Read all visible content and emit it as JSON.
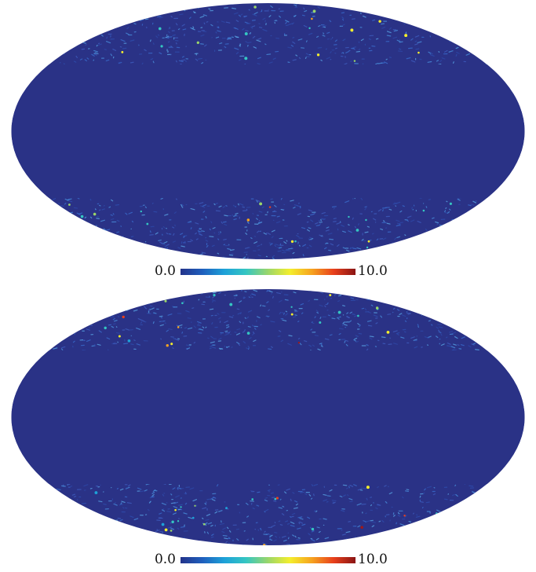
{
  "colormap": {
    "name": "jet",
    "stops": [
      "#23338a",
      "#1f5fbd",
      "#1da1d8",
      "#35c6c2",
      "#9ad66a",
      "#f4ee2c",
      "#f6a31f",
      "#e8401c",
      "#8a1414"
    ]
  },
  "colors": {
    "sphere_background": "#2a3286",
    "band": "#2a3286"
  },
  "maps": [
    {
      "colorbar_min_label": "0.0",
      "colorbar_max_label": "10.0",
      "masked_band": "galactic plane",
      "seed": 7,
      "hotspot_level": 0.35
    },
    {
      "colorbar_min_label": "0.0",
      "colorbar_max_label": "10.0",
      "masked_band": "galactic plane",
      "seed": 19,
      "hotspot_level": 0.85
    }
  ]
}
